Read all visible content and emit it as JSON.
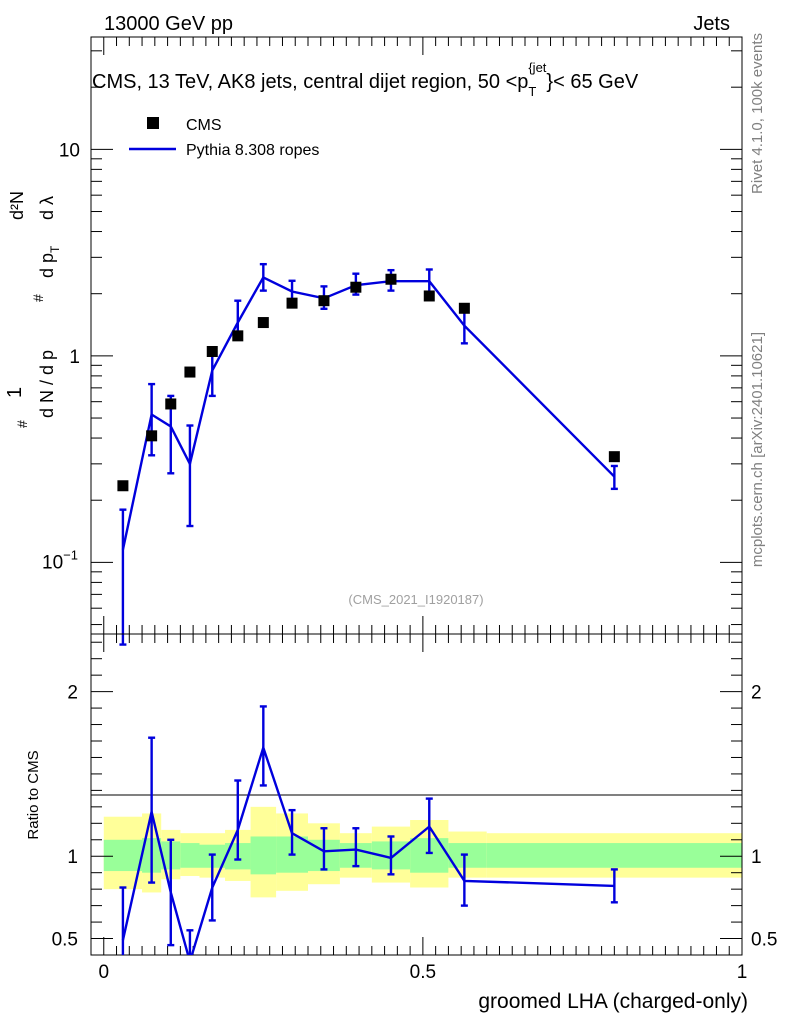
{
  "header": {
    "left": "13000 GeV pp",
    "right": "Jets"
  },
  "chart_data": [
    {
      "type": "line",
      "panel": "main",
      "title": "CMS, 13 TeV, AK8 jets, central dijet region, 50 <p_T^{jet}< 65 GeV",
      "title_parts": {
        "a": "CMS, 13 TeV, AK8 jets, central dijet region, 50 <p",
        "sub": "T",
        "sup": "{jet",
        "sup_close": "}",
        "b": "< 65 GeV"
      },
      "ylabel": "1/(dN/dpT) d²N/(dpT dλ)",
      "ylabel_parts": {
        "hash": "#",
        "one": "1",
        "dN": "d N / d p",
        "T": "T",
        "d2N": "d²N",
        "dp": "d p",
        "dl": "d λ"
      },
      "yscale": "log",
      "ylim": [
        0.045,
        35
      ],
      "xlim": [
        -0.02,
        1.0
      ],
      "yticks": [
        {
          "value": 0.1,
          "base": "10",
          "exp": "−1"
        },
        {
          "value": 1,
          "label": "1"
        },
        {
          "value": 10,
          "label": "10"
        }
      ],
      "legend": [
        {
          "name": "CMS",
          "marker": "square",
          "color": "#000000"
        },
        {
          "name": "Pythia 8.308 ropes",
          "marker": "line",
          "color": "#0000dd"
        }
      ],
      "watermark": "(CMS_2021_I1920187)",
      "series": [
        {
          "name": "CMS",
          "x": [
            0.03,
            0.075,
            0.105,
            0.135,
            0.17,
            0.21,
            0.25,
            0.295,
            0.345,
            0.395,
            0.45,
            0.51,
            0.565,
            0.8
          ],
          "y": [
            0.235,
            0.41,
            0.585,
            0.835,
            1.05,
            1.25,
            1.45,
            1.8,
            1.85,
            2.15,
            2.35,
            1.95,
            1.7,
            0.325
          ]
        },
        {
          "name": "Pythia 8.308 ropes",
          "x": [
            0.03,
            0.075,
            0.105,
            0.135,
            0.17,
            0.21,
            0.25,
            0.295,
            0.345,
            0.395,
            0.45,
            0.51,
            0.565,
            0.8
          ],
          "y": [
            0.115,
            0.52,
            0.455,
            0.3,
            0.85,
            1.45,
            2.4,
            2.05,
            1.9,
            2.2,
            2.3,
            2.3,
            1.4,
            0.26
          ],
          "err_low": [
            0.075,
            0.19,
            0.185,
            0.15,
            0.21,
            0.23,
            0.33,
            0.23,
            0.21,
            0.22,
            0.23,
            0.32,
            0.25,
            0.033
          ],
          "err_high": [
            0.065,
            0.21,
            0.185,
            0.16,
            0.21,
            0.4,
            0.38,
            0.26,
            0.27,
            0.3,
            0.3,
            0.32,
            0.25,
            0.033
          ]
        }
      ]
    },
    {
      "type": "line",
      "panel": "ratio",
      "ylabel": "Ratio to CMS",
      "xlabel": "groomed LHA (charged-only)",
      "xlim": [
        -0.02,
        1.0
      ],
      "ylim": [
        0.4,
        2.35
      ],
      "xticks": [
        {
          "value": 0,
          "label": "0"
        },
        {
          "value": 0.5,
          "label": "0.5"
        },
        {
          "value": 1,
          "label": "1"
        }
      ],
      "yticks": [
        {
          "value": 0.5,
          "label": "0.5"
        },
        {
          "value": 1,
          "label": "1"
        },
        {
          "value": 2,
          "label": "2"
        }
      ],
      "bins": [
        0,
        0.06,
        0.09,
        0.12,
        0.15,
        0.19,
        0.23,
        0.27,
        0.32,
        0.37,
        0.42,
        0.48,
        0.54,
        0.6,
        1.0
      ],
      "band_inner": [
        [
          0.91,
          1.1
        ],
        [
          0.9,
          1.11
        ],
        [
          0.92,
          1.09
        ],
        [
          0.93,
          1.08
        ],
        [
          0.93,
          1.07
        ],
        [
          0.92,
          1.08
        ],
        [
          0.89,
          1.12
        ],
        [
          0.9,
          1.12
        ],
        [
          0.91,
          1.1
        ],
        [
          0.93,
          1.08
        ],
        [
          0.92,
          1.09
        ],
        [
          0.9,
          1.11
        ],
        [
          0.93,
          1.08
        ],
        [
          0.93,
          1.08
        ]
      ],
      "band_outer": [
        [
          0.8,
          1.24
        ],
        [
          0.78,
          1.26
        ],
        [
          0.86,
          1.16
        ],
        [
          0.88,
          1.14
        ],
        [
          0.87,
          1.14
        ],
        [
          0.85,
          1.16
        ],
        [
          0.75,
          1.3
        ],
        [
          0.79,
          1.26
        ],
        [
          0.83,
          1.2
        ],
        [
          0.87,
          1.14
        ],
        [
          0.84,
          1.18
        ],
        [
          0.81,
          1.22
        ],
        [
          0.87,
          1.15
        ],
        [
          0.87,
          1.14
        ]
      ],
      "series": [
        {
          "name": "Pythia 8.308 ropes",
          "x": [
            0.03,
            0.075,
            0.105,
            0.135,
            0.17,
            0.21,
            0.25,
            0.295,
            0.345,
            0.395,
            0.45,
            0.51,
            0.565,
            0.8
          ],
          "y": [
            0.49,
            1.27,
            0.78,
            0.36,
            0.81,
            1.16,
            1.66,
            1.14,
            1.03,
            1.04,
            0.99,
            1.18,
            0.85,
            0.82
          ],
          "err_low": [
            0.32,
            0.43,
            0.32,
            0.17,
            0.2,
            0.18,
            0.23,
            0.13,
            0.11,
            0.1,
            0.1,
            0.16,
            0.15,
            0.1
          ],
          "err_high": [
            0.32,
            0.45,
            0.32,
            0.19,
            0.2,
            0.3,
            0.25,
            0.14,
            0.14,
            0.13,
            0.13,
            0.17,
            0.16,
            0.1
          ]
        }
      ]
    }
  ],
  "side_labels": {
    "rivet": "Rivet 4.1.0,  100k events",
    "mcplots": "mcplots.cern.ch [arXiv:2401.10621]"
  }
}
